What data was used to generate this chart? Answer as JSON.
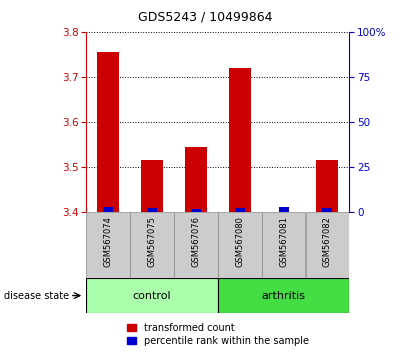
{
  "title": "GDS5243 / 10499864",
  "samples": [
    "GSM567074",
    "GSM567075",
    "GSM567076",
    "GSM567080",
    "GSM567081",
    "GSM567082"
  ],
  "red_values": [
    3.755,
    3.515,
    3.545,
    3.72,
    3.4,
    3.515
  ],
  "blue_values": [
    3.413,
    3.41,
    3.408,
    3.41,
    3.413,
    3.41
  ],
  "red_base": 3.4,
  "ylim_left": [
    3.4,
    3.8
  ],
  "ylim_right": [
    0,
    100
  ],
  "yticks_left": [
    3.4,
    3.5,
    3.6,
    3.7,
    3.8
  ],
  "yticks_right": [
    0,
    25,
    50,
    75,
    100
  ],
  "ytick_labels_right": [
    "0",
    "25",
    "50",
    "75",
    "100%"
  ],
  "groups": [
    {
      "label": "control",
      "samples": [
        0,
        1,
        2
      ],
      "color": "#AAFFAA"
    },
    {
      "label": "arthritis",
      "samples": [
        3,
        4,
        5
      ],
      "color": "#44DD44"
    }
  ],
  "bar_width": 0.5,
  "red_color": "#CC0000",
  "blue_color": "#0000CC",
  "sample_area_color": "#CCCCCC",
  "left_tick_color": "#CC0000",
  "right_tick_color": "#0000CC",
  "title_fontsize": 9,
  "legend_fontsize": 7,
  "sample_fontsize": 6,
  "group_fontsize": 8
}
